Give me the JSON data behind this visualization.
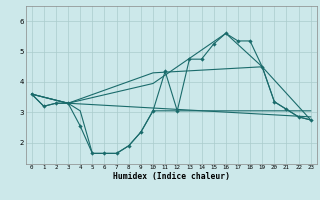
{
  "xlabel": "Humidex (Indice chaleur)",
  "background_color": "#cce8ea",
  "grid_color": "#aacccc",
  "line_color": "#1a6b6b",
  "xlim": [
    -0.5,
    23.5
  ],
  "ylim": [
    1.3,
    6.5
  ],
  "yticks": [
    2,
    3,
    4,
    5,
    6
  ],
  "xticks": [
    0,
    1,
    2,
    3,
    4,
    5,
    6,
    7,
    8,
    9,
    10,
    11,
    12,
    13,
    14,
    15,
    16,
    17,
    18,
    19,
    20,
    21,
    22,
    23
  ],
  "line1_x": [
    0,
    1,
    2,
    3,
    4,
    5,
    6,
    7,
    8,
    9,
    10,
    11,
    12,
    13,
    14,
    15,
    16,
    17,
    18,
    19,
    20,
    21,
    22,
    23
  ],
  "line1_y": [
    3.6,
    3.2,
    3.3,
    3.3,
    3.05,
    1.65,
    1.65,
    1.65,
    1.9,
    2.35,
    3.05,
    3.05,
    3.05,
    3.05,
    3.05,
    3.05,
    3.05,
    3.05,
    3.05,
    3.05,
    3.05,
    3.05,
    3.05,
    3.05
  ],
  "line2_x": [
    0,
    1,
    2,
    3,
    4,
    5,
    6,
    7,
    8,
    9,
    10,
    11,
    12,
    13,
    14,
    15,
    16,
    17,
    18,
    19,
    20,
    21,
    22,
    23
  ],
  "line2_y": [
    3.6,
    3.2,
    3.3,
    3.3,
    2.55,
    1.65,
    1.65,
    1.65,
    1.9,
    2.35,
    3.05,
    4.35,
    3.05,
    4.75,
    4.75,
    5.25,
    5.6,
    5.35,
    5.35,
    4.5,
    3.35,
    3.1,
    2.85,
    2.75
  ],
  "line3_x": [
    0,
    3,
    10,
    19,
    23
  ],
  "line3_y": [
    3.6,
    3.3,
    4.3,
    4.5,
    2.75
  ],
  "line4_x": [
    0,
    3,
    10,
    16,
    19,
    20,
    21,
    22,
    23
  ],
  "line4_y": [
    3.6,
    3.3,
    3.95,
    5.6,
    4.5,
    3.35,
    3.1,
    2.85,
    2.75
  ],
  "line5_x": [
    0,
    3,
    23
  ],
  "line5_y": [
    3.6,
    3.3,
    2.85
  ]
}
